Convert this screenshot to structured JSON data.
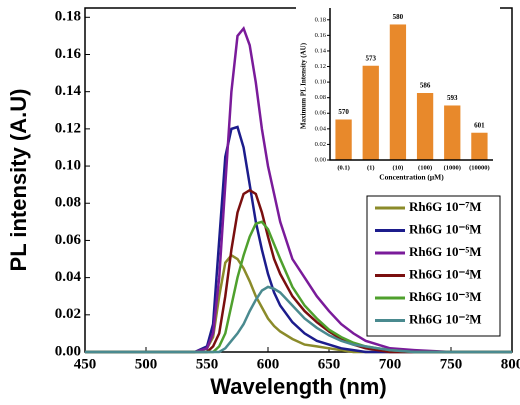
{
  "chart_data": [
    {
      "type": "line",
      "x_label": "Wavelength (nm)",
      "y_label": "PL intensity (A.U)",
      "x": [
        450,
        500,
        530,
        540,
        550,
        555,
        560,
        565,
        570,
        575,
        580,
        585,
        590,
        595,
        600,
        605,
        610,
        620,
        630,
        640,
        650,
        660,
        670,
        680,
        690,
        700,
        720,
        750,
        800
      ],
      "xlim": [
        450,
        800
      ],
      "xticks": [
        450,
        500,
        550,
        600,
        650,
        700,
        750,
        800
      ],
      "ylim": [
        0,
        0.185
      ],
      "yticks": [
        {
          "value": 0,
          "label": "0.00"
        },
        {
          "value": 0.02,
          "label": "0.02"
        },
        {
          "value": 0.04,
          "label": "0.04"
        },
        {
          "value": 0.06,
          "label": "0.06"
        },
        {
          "value": 0.08,
          "label": "0.08"
        },
        {
          "value": 0.1,
          "label": "0.10"
        },
        {
          "value": 0.12,
          "label": "0.12"
        },
        {
          "value": 0.14,
          "label": "0.14"
        },
        {
          "value": 0.16,
          "label": "0.16"
        },
        {
          "value": 0.18,
          "label": "0.18"
        }
      ],
      "legend": "lower right",
      "series": [
        {
          "name": "Rh6G 10⁻⁷M",
          "color": "#8b8b2a",
          "values": [
            0,
            0,
            0,
            0,
            0.002,
            0.008,
            0.03,
            0.048,
            0.052,
            0.05,
            0.045,
            0.038,
            0.03,
            0.024,
            0.018,
            0.014,
            0.011,
            0.007,
            0.004,
            0.003,
            0.002,
            0.001,
            0,
            0,
            0,
            0,
            0,
            0,
            0
          ]
        },
        {
          "name": "Rh6G 10⁻⁶M",
          "color": "#1c1c8c",
          "values": [
            0,
            0,
            0,
            0,
            0.003,
            0.015,
            0.06,
            0.105,
            0.12,
            0.121,
            0.11,
            0.09,
            0.07,
            0.055,
            0.042,
            0.032,
            0.025,
            0.016,
            0.01,
            0.006,
            0.004,
            0.002,
            0.001,
            0,
            0,
            0,
            0,
            0,
            0
          ]
        },
        {
          "name": "Rh6G 10⁻⁵M",
          "color": "#7a1b9a",
          "values": [
            0,
            0,
            0,
            0,
            0.002,
            0.01,
            0.04,
            0.09,
            0.14,
            0.17,
            0.174,
            0.165,
            0.145,
            0.12,
            0.1,
            0.085,
            0.07,
            0.05,
            0.04,
            0.03,
            0.022,
            0.015,
            0.01,
            0.006,
            0.004,
            0.002,
            0.001,
            0,
            0
          ]
        },
        {
          "name": "Rh6G 10⁻⁴M",
          "color": "#7a0f0f",
          "values": [
            0,
            0,
            0,
            0,
            0,
            0.003,
            0.01,
            0.03,
            0.055,
            0.075,
            0.085,
            0.087,
            0.085,
            0.075,
            0.062,
            0.05,
            0.042,
            0.03,
            0.022,
            0.016,
            0.011,
            0.007,
            0.004,
            0.002,
            0.001,
            0,
            0,
            0,
            0
          ]
        },
        {
          "name": "Rh6G 10⁻³M",
          "color": "#4fa02d",
          "values": [
            0,
            0,
            0,
            0,
            0,
            0,
            0.003,
            0.01,
            0.025,
            0.04,
            0.052,
            0.062,
            0.069,
            0.07,
            0.066,
            0.058,
            0.05,
            0.035,
            0.025,
            0.018,
            0.012,
            0.008,
            0.005,
            0.003,
            0.002,
            0.001,
            0,
            0,
            0
          ]
        },
        {
          "name": "Rh6G 10⁻²M",
          "color": "#4a8a8f",
          "values": [
            0,
            0,
            0,
            0,
            0,
            0,
            0,
            0.002,
            0.006,
            0.01,
            0.015,
            0.022,
            0.028,
            0.033,
            0.035,
            0.034,
            0.032,
            0.025,
            0.018,
            0.013,
            0.009,
            0.006,
            0.004,
            0.003,
            0.002,
            0.001,
            0,
            0,
            0
          ]
        }
      ]
    },
    {
      "type": "bar",
      "x_label": "Concentration (μM)",
      "y_label": "Maximum PL Intensity (AU)",
      "categories": [
        "(0.1)",
        "(1)",
        "(10)",
        "(100)",
        "(1000)",
        "(10000)"
      ],
      "values": [
        0.052,
        0.121,
        0.174,
        0.086,
        0.07,
        0.035
      ],
      "annotations": [
        "570",
        "573",
        "580",
        "586",
        "593",
        "601"
      ],
      "color": "#e8892b",
      "ylim": [
        0,
        0.19
      ],
      "yticks": [
        {
          "value": 0,
          "label": "0.00"
        },
        {
          "value": 0.02,
          "label": "0.02"
        },
        {
          "value": 0.04,
          "label": "0.04"
        },
        {
          "value": 0.06,
          "label": "0.06"
        },
        {
          "value": 0.08,
          "label": "0.08"
        },
        {
          "value": 0.1,
          "label": "0.10"
        },
        {
          "value": 0.12,
          "label": "0.12"
        },
        {
          "value": 0.14,
          "label": "0.14"
        },
        {
          "value": 0.16,
          "label": "0.16"
        },
        {
          "value": 0.18,
          "label": "0.18"
        }
      ]
    }
  ]
}
